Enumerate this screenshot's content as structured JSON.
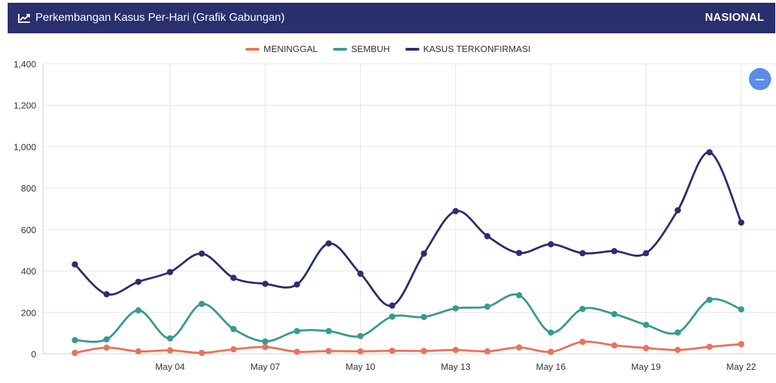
{
  "header": {
    "title": "Perkembangan Kasus Per-Hari (Grafik Gabungan)",
    "region": "NASIONAL",
    "icon": "line-chart-icon"
  },
  "zoom": {
    "symbol": "−",
    "icon": "zoom-out-icon"
  },
  "colors": {
    "header_bg": "#2a2f6e",
    "meninggal": "#e8735a",
    "sembuh": "#3a9a8e",
    "terkonfirmasi": "#2a2f6e",
    "zoom": "#5b8de8"
  },
  "chart_data": {
    "type": "line",
    "x": [
      "2020-05-01",
      "2020-05-02",
      "2020-05-03",
      "2020-05-04",
      "2020-05-05",
      "2020-05-06",
      "2020-05-07",
      "2020-05-08",
      "2020-05-09",
      "2020-05-10",
      "2020-05-11",
      "2020-05-12",
      "2020-05-13",
      "2020-05-14",
      "2020-05-15",
      "2020-05-16",
      "2020-05-17",
      "2020-05-18",
      "2020-05-19",
      "2020-05-20",
      "2020-05-21",
      "2020-05-22"
    ],
    "x_ticks": [
      {
        "date": "2020-05-04",
        "label": "May 04"
      },
      {
        "date": "2020-05-07",
        "label": "May 07"
      },
      {
        "date": "2020-05-10",
        "label": "May 10"
      },
      {
        "date": "2020-05-13",
        "label": "May 13"
      },
      {
        "date": "2020-05-16",
        "label": "May 16"
      },
      {
        "date": "2020-05-19",
        "label": "May 19"
      },
      {
        "date": "2020-05-22",
        "label": "May 22"
      }
    ],
    "x_range": [
      "2020-04-30",
      "2020-05-22"
    ],
    "ylim": [
      0,
      1400
    ],
    "y_ticks": [
      {
        "value": 0,
        "label": "0"
      },
      {
        "value": 200,
        "label": "200"
      },
      {
        "value": 400,
        "label": "400"
      },
      {
        "value": 600,
        "label": "600"
      },
      {
        "value": 800,
        "label": "800"
      },
      {
        "value": 1000,
        "label": "1,000"
      },
      {
        "value": 1200,
        "label": "1,200"
      },
      {
        "value": 1400,
        "label": "1,400"
      }
    ],
    "legend_position": "top-center",
    "grid": true,
    "series": [
      {
        "key": "meninggal",
        "name": "MENINGGAL",
        "values": [
          5,
          30,
          12,
          17,
          5,
          22,
          33,
          10,
          14,
          12,
          15,
          14,
          19,
          12,
          31,
          10,
          58,
          41,
          28,
          19,
          34,
          47
        ]
      },
      {
        "key": "sembuh",
        "name": "SEMBUH",
        "values": [
          66,
          70,
          210,
          75,
          241,
          120,
          60,
          110,
          110,
          86,
          180,
          178,
          220,
          228,
          283,
          103,
          217,
          192,
          140,
          103,
          261,
          215
        ]
      },
      {
        "key": "terkonfirmasi",
        "name": "KASUS TERKONFIRMASI",
        "values": [
          432,
          288,
          348,
          395,
          484,
          367,
          338,
          335,
          533,
          387,
          233,
          484,
          689,
          568,
          487,
          529,
          486,
          496,
          486,
          693,
          973,
          634
        ]
      }
    ]
  }
}
